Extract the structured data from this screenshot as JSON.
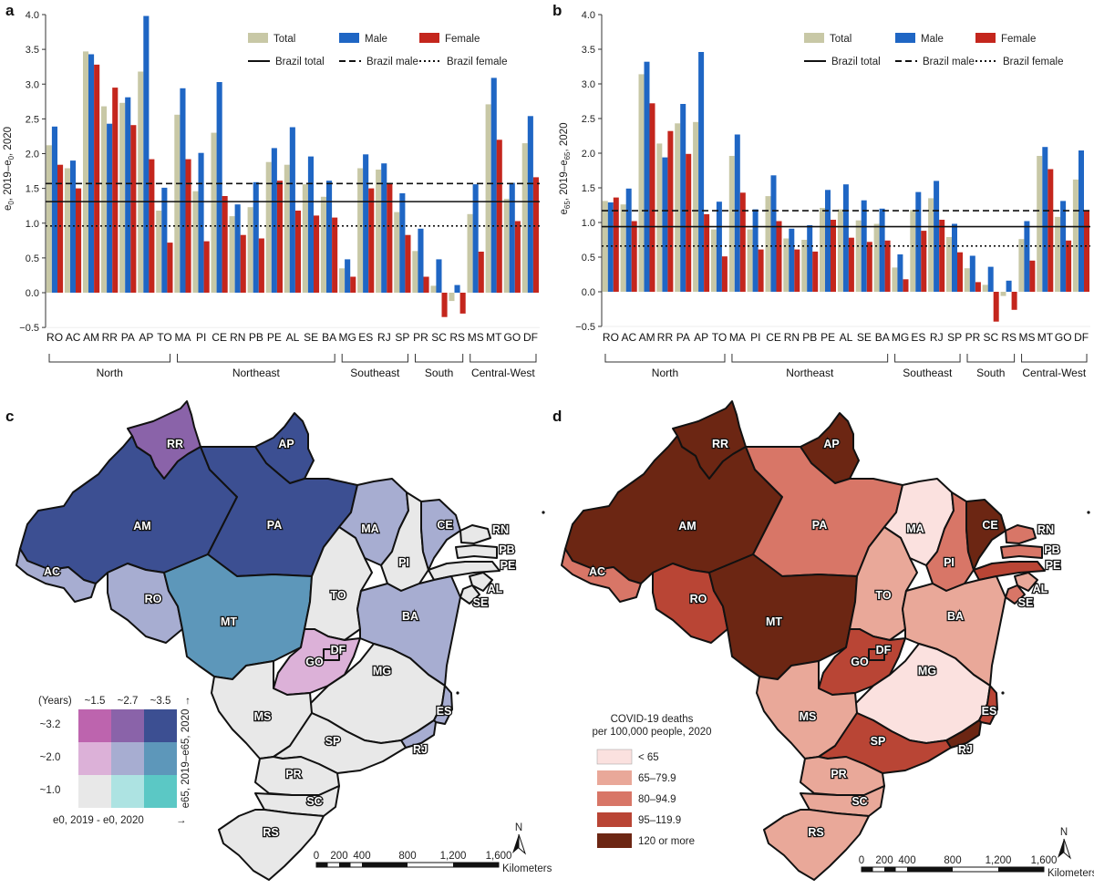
{
  "colors": {
    "total": "#c8c8a6",
    "male": "#1f66c4",
    "female": "#c4261d",
    "bi_low_low": "#e8e8e8",
    "bi_mid_low": "#ade3e2",
    "bi_high_low": "#5bc8c5",
    "bi_low_mid": "#dcb1d8",
    "bi_mid_mid": "#a7add1",
    "bi_high_mid": "#5d97ba",
    "bi_low_high": "#bd64ae",
    "bi_mid_high": "#8a63a9",
    "bi_high_high": "#3c4f92",
    "d_lt65": "#fbe1df",
    "d_65": "#e9a899",
    "d_80": "#d87667",
    "d_95": "#b94535",
    "d_120": "#6c2613"
  },
  "chart_data": [
    {
      "type": "bar",
      "panel": "a",
      "ylabel": "e0, 2019–e0, 2020",
      "ylim": [
        -0.5,
        4.0
      ],
      "yticks": [
        "−0.5",
        "0.0",
        "0.5",
        "1.0",
        "1.5",
        "2.0",
        "2.5",
        "3.0",
        "3.5",
        "4.0"
      ],
      "categories": [
        "RO",
        "AC",
        "AM",
        "RR",
        "PA",
        "AP",
        "TO",
        "MA",
        "PI",
        "CE",
        "RN",
        "PB",
        "PE",
        "AL",
        "SE",
        "BA",
        "MG",
        "ES",
        "RJ",
        "SP",
        "PR",
        "SC",
        "RS",
        "MS",
        "MT",
        "GO",
        "DF"
      ],
      "series": [
        {
          "name": "Total",
          "values": [
            2.12,
            1.79,
            3.47,
            2.68,
            2.73,
            3.18,
            1.18,
            2.56,
            1.46,
            2.3,
            1.1,
            1.23,
            1.88,
            1.84,
            1.56,
            1.38,
            0.35,
            1.79,
            1.77,
            1.16,
            0.6,
            0.1,
            -0.12,
            1.13,
            2.71,
            1.35,
            2.15
          ]
        },
        {
          "name": "Male",
          "values": [
            2.39,
            1.9,
            3.43,
            2.43,
            2.81,
            3.98,
            1.51,
            2.94,
            2.01,
            3.03,
            1.27,
            1.59,
            2.08,
            2.38,
            1.96,
            1.61,
            0.48,
            1.99,
            1.86,
            1.43,
            0.92,
            0.48,
            0.11,
            1.56,
            3.09,
            1.58,
            2.54
          ]
        },
        {
          "name": "Female",
          "values": [
            1.84,
            1.5,
            3.28,
            2.95,
            2.41,
            1.92,
            0.72,
            1.92,
            0.74,
            1.39,
            0.83,
            0.78,
            1.61,
            1.18,
            1.11,
            1.08,
            0.23,
            1.5,
            1.58,
            0.83,
            0.23,
            -0.35,
            -0.3,
            0.59,
            2.2,
            1.03,
            1.66
          ]
        }
      ],
      "refs": {
        "Brazil total": 1.31,
        "Brazil male": 1.57,
        "Brazil female": 0.96
      },
      "groups": [
        {
          "name": "North",
          "from": 0,
          "to": 6
        },
        {
          "name": "Northeast",
          "from": 7,
          "to": 15
        },
        {
          "name": "Southeast",
          "from": 16,
          "to": 19
        },
        {
          "name": "South",
          "from": 20,
          "to": 22
        },
        {
          "name": "Central-West",
          "from": 23,
          "to": 26
        }
      ],
      "legend": [
        "Total",
        "Male",
        "Female",
        "Brazil total",
        "Brazil male",
        "Brazil female"
      ]
    },
    {
      "type": "bar",
      "panel": "b",
      "ylabel": "e65, 2019–e65, 2020",
      "ylim": [
        -0.5,
        4.0
      ],
      "yticks": [
        "−0.5",
        "0.0",
        "0.5",
        "1.0",
        "1.5",
        "2.0",
        "2.5",
        "3.0",
        "3.5",
        "4.0"
      ],
      "categories": [
        "RO",
        "AC",
        "AM",
        "RR",
        "PA",
        "AP",
        "TO",
        "MA",
        "PI",
        "CE",
        "RN",
        "PB",
        "PE",
        "AL",
        "SE",
        "BA",
        "MG",
        "ES",
        "RJ",
        "SP",
        "PR",
        "SC",
        "RS",
        "MS",
        "MT",
        "GO",
        "DF"
      ],
      "series": [
        {
          "name": "Total",
          "values": [
            1.31,
            1.26,
            3.14,
            2.14,
            2.43,
            2.45,
            0.9,
            1.96,
            0.9,
            1.38,
            0.77,
            0.75,
            1.21,
            1.19,
            1.03,
            0.98,
            0.35,
            1.18,
            1.35,
            0.79,
            0.34,
            0.1,
            -0.06,
            0.76,
            1.96,
            1.08,
            1.62
          ]
        },
        {
          "name": "Male",
          "values": [
            1.29,
            1.49,
            3.32,
            1.94,
            2.71,
            3.46,
            1.3,
            2.27,
            1.19,
            1.68,
            0.91,
            0.96,
            1.47,
            1.55,
            1.32,
            1.2,
            0.54,
            1.44,
            1.6,
            0.98,
            0.52,
            0.36,
            0.16,
            1.02,
            2.09,
            1.31,
            2.04
          ]
        },
        {
          "name": "Female",
          "values": [
            1.36,
            1.02,
            2.72,
            2.32,
            1.99,
            1.12,
            0.51,
            1.43,
            0.61,
            1.02,
            0.61,
            0.58,
            1.04,
            0.78,
            0.72,
            0.74,
            0.18,
            0.88,
            1.04,
            0.57,
            0.14,
            -0.43,
            -0.26,
            0.45,
            1.77,
            0.74,
            1.17
          ]
        }
      ],
      "refs": {
        "Brazil total": 0.94,
        "Brazil male": 1.17,
        "Brazil female": 0.66
      },
      "groups": [
        {
          "name": "North",
          "from": 0,
          "to": 6
        },
        {
          "name": "Northeast",
          "from": 7,
          "to": 15
        },
        {
          "name": "Southeast",
          "from": 16,
          "to": 19
        },
        {
          "name": "South",
          "from": 20,
          "to": 22
        },
        {
          "name": "Central-West",
          "from": 23,
          "to": 26
        }
      ],
      "legend": [
        "Total",
        "Male",
        "Female",
        "Brazil total",
        "Brazil male",
        "Brazil female"
      ]
    }
  ],
  "maps": {
    "c": {
      "panel": "c",
      "legend": {
        "years": "(Years)",
        "cols": [
          "~1.5",
          "~2.7",
          "~3.5"
        ],
        "rows": [
          "~3.2",
          "~2.0",
          "~1.0"
        ],
        "xaxis": "e0, 2019 - e0, 2020",
        "yaxis": "e65, 2019–e65, 2020"
      }
    },
    "d": {
      "panel": "d",
      "legend": {
        "title1": "COVID-19 deaths",
        "title2": "per 100,000 people, 2020",
        "items": [
          "< 65",
          "65–79.9",
          "80–94.9",
          "95–119.9",
          "120 or more"
        ]
      }
    },
    "scale": {
      "ticks": [
        "0",
        "200",
        "400",
        "800",
        "1,200",
        "1,600"
      ],
      "unit": "Kilometers",
      "north": "N"
    },
    "states": [
      "RR",
      "AP",
      "AM",
      "PA",
      "MA",
      "CE",
      "RN",
      "PB",
      "PE",
      "AL",
      "SE",
      "PI",
      "AC",
      "RO",
      "MT",
      "TO",
      "BA",
      "GO",
      "DF",
      "MG",
      "ES",
      "MS",
      "SP",
      "RJ",
      "PR",
      "SC",
      "RS"
    ]
  }
}
